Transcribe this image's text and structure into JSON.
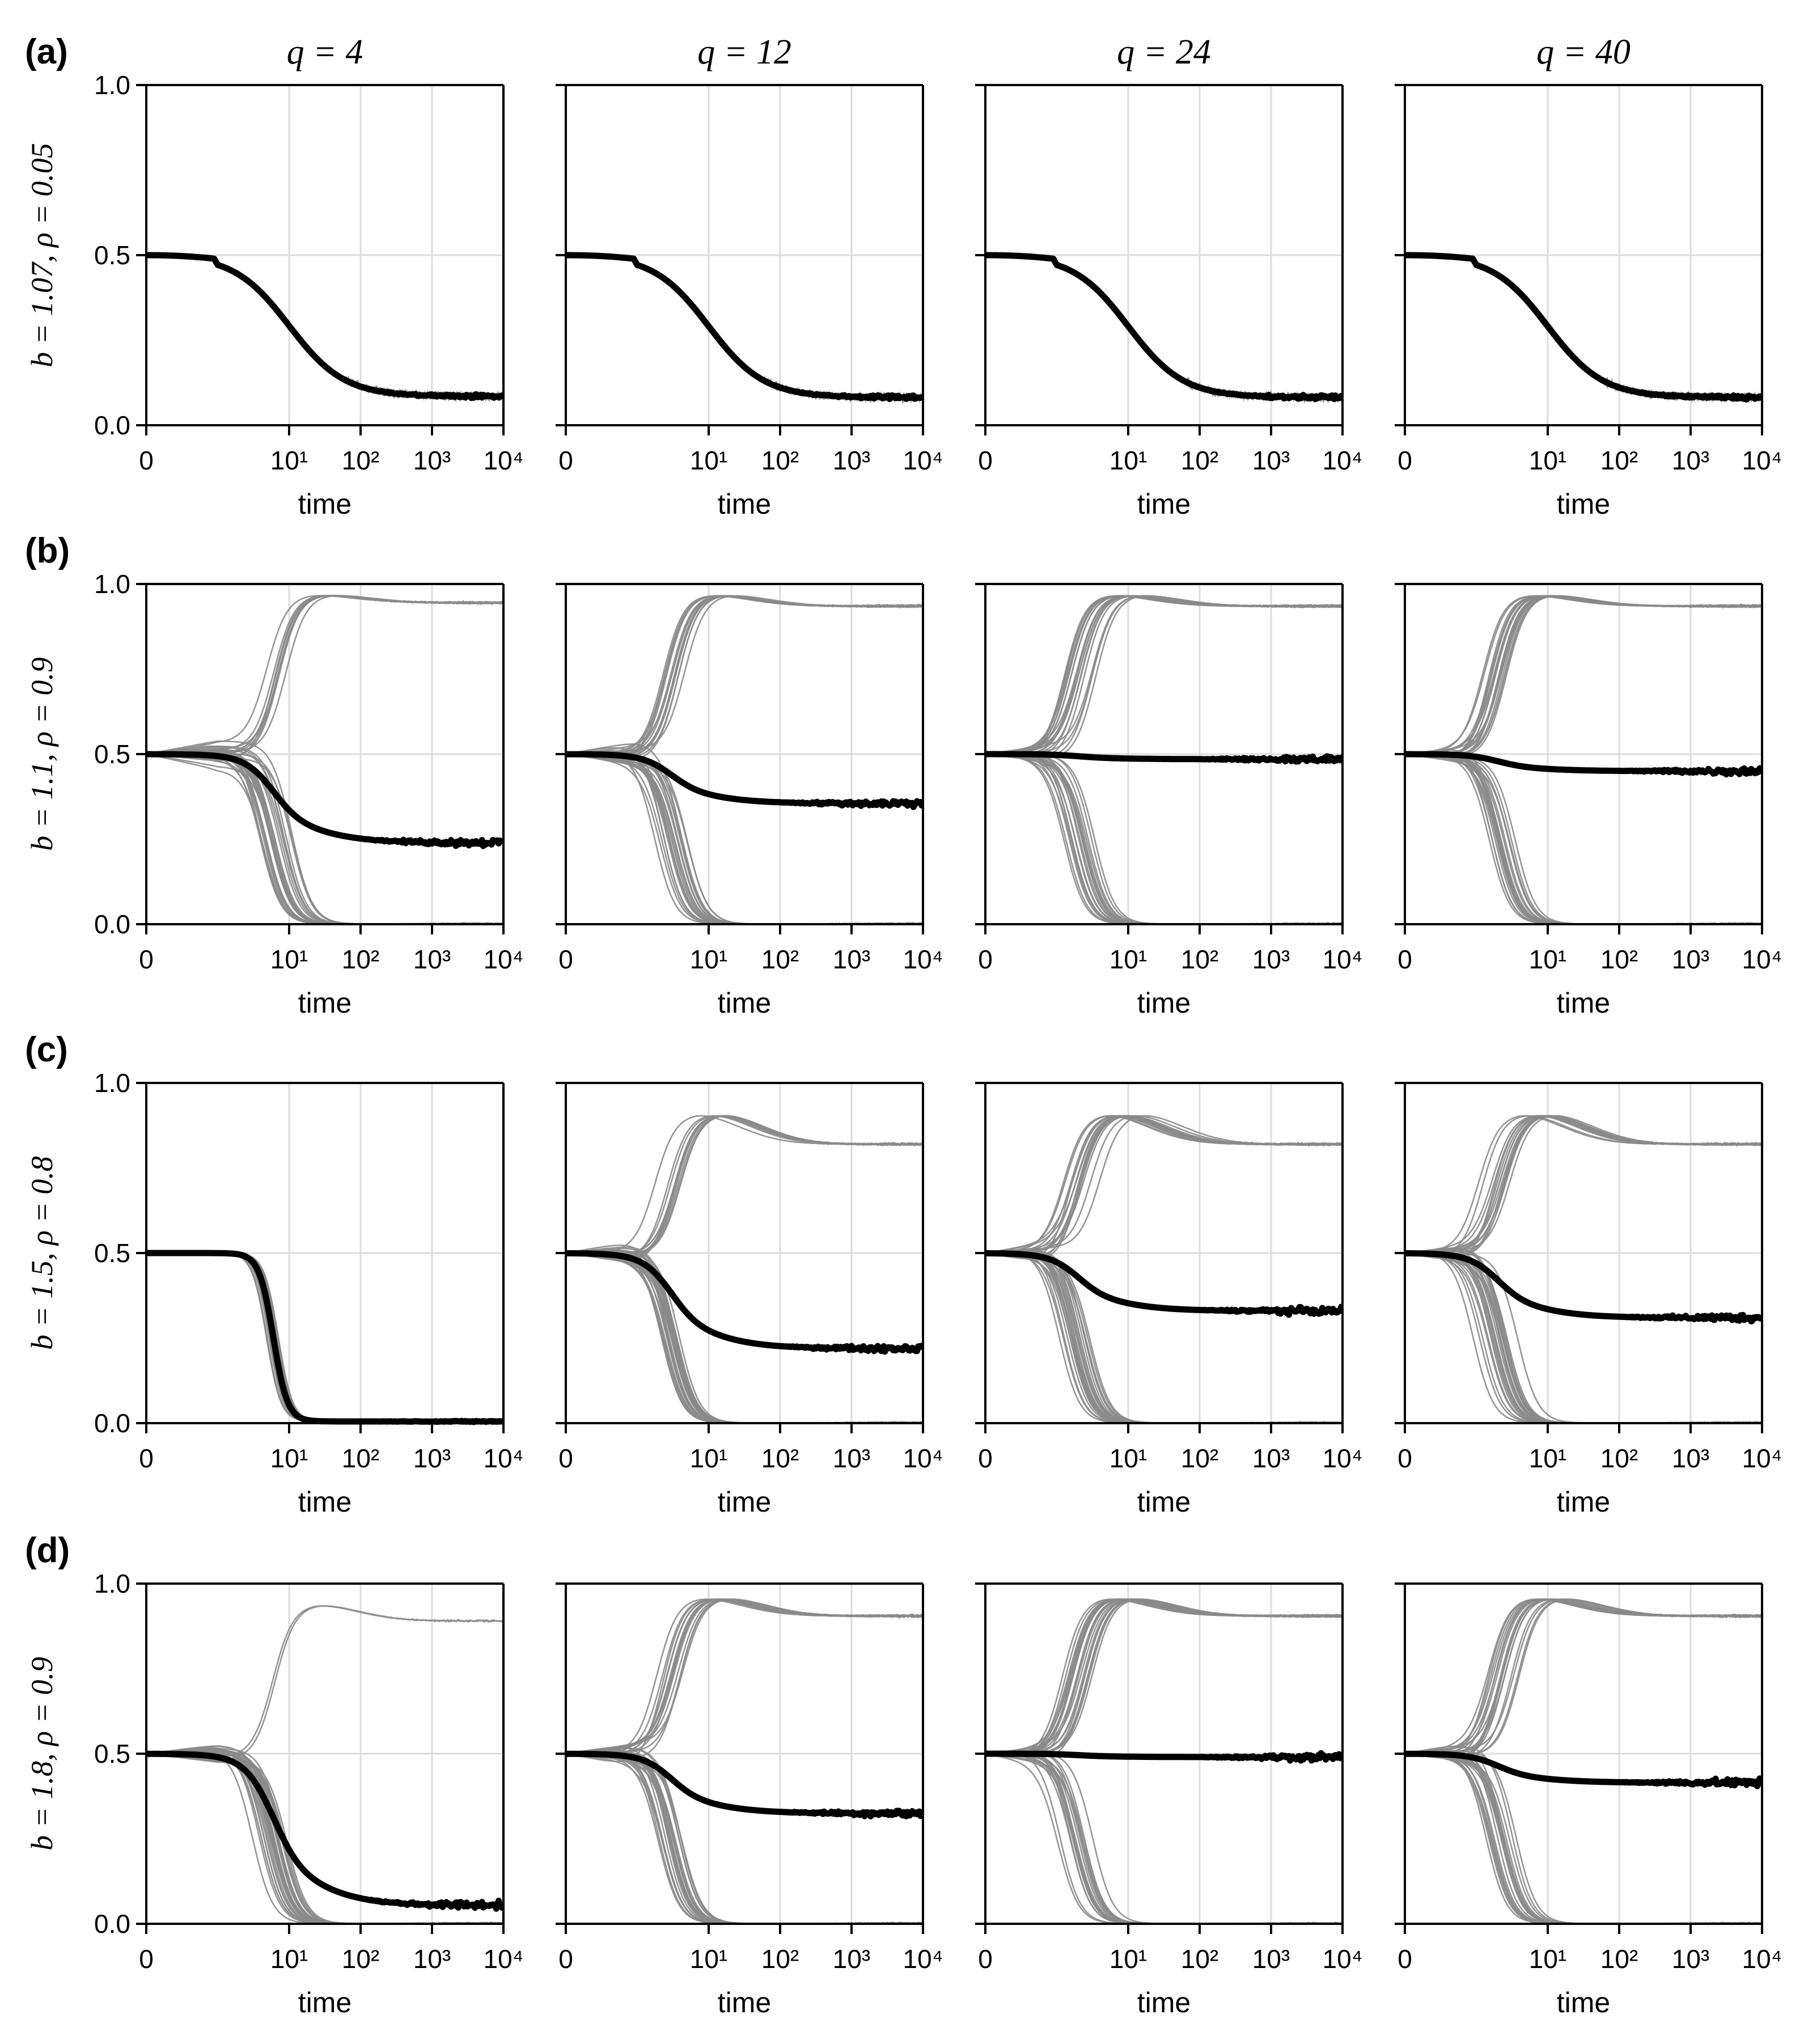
{
  "columns": [
    {
      "label": "q = 4"
    },
    {
      "label": "q = 12"
    },
    {
      "label": "q = 24"
    },
    {
      "label": "q = 40"
    }
  ],
  "rows": [
    {
      "panel_label": "(a)",
      "ylabel": "b = 1.07, ρ = 0.05"
    },
    {
      "panel_label": "(b)",
      "ylabel": "b = 1.1, ρ = 0.9"
    },
    {
      "panel_label": "(c)",
      "ylabel": "b = 1.5, ρ = 0.8"
    },
    {
      "panel_label": "(d)",
      "ylabel": "b = 1.8, ρ = 0.9"
    }
  ],
  "colors": {
    "realization": "#8a8a8a",
    "mean": "#000000",
    "grid": "#dcdcdc"
  },
  "chart_data": {
    "type": "line",
    "layout": "4x4 grid of line plots",
    "xlabel": "time",
    "xscale": "symlog",
    "xlim": [
      0,
      10000
    ],
    "xticks": [
      0,
      10,
      100,
      1000,
      10000
    ],
    "xticklabels": [
      "0",
      "10¹",
      "10²",
      "10³",
      "10⁴"
    ],
    "yticks": [
      0,
      0.5,
      1
    ],
    "yticklabels": [
      "0.0",
      "0.5",
      "1.0"
    ],
    "ylim": [
      0,
      1
    ],
    "grid": true,
    "series_legend": [
      "individual realizations (thin grey lines)",
      "mean (thick black line)"
    ],
    "panels": [
      [
        {
          "mode": "decay",
          "start": 0.5,
          "end": 0.085,
          "tmid": 10,
          "width": 1.45,
          "noise": 0.02
        },
        {
          "mode": "decay",
          "start": 0.5,
          "end": 0.082,
          "tmid": 10,
          "width": 1.45,
          "noise": 0.02
        },
        {
          "mode": "decay",
          "start": 0.5,
          "end": 0.082,
          "tmid": 10,
          "width": 1.45,
          "noise": 0.02
        },
        {
          "mode": "decay",
          "start": 0.5,
          "end": 0.082,
          "tmid": 10,
          "width": 1.45,
          "noise": 0.02
        }
      ],
      [
        {
          "mode": "split",
          "up_peak": 0.97,
          "up_plateau": 0.945,
          "frac_up": 0.24,
          "mean_plateau": 0.24,
          "t_split": 6,
          "spread": 0.3
        },
        {
          "mode": "split",
          "up_peak": 0.97,
          "up_plateau": 0.935,
          "frac_up": 0.37,
          "mean_plateau": 0.355,
          "t_split": 3,
          "spread": 0.25
        },
        {
          "mode": "split",
          "up_peak": 0.97,
          "up_plateau": 0.935,
          "frac_up": 0.52,
          "mean_plateau": 0.485,
          "t_split": 2,
          "spread": 0.3
        },
        {
          "mode": "split",
          "up_peak": 0.97,
          "up_plateau": 0.935,
          "frac_up": 0.48,
          "mean_plateau": 0.45,
          "t_split": 2,
          "spread": 0.3
        }
      ],
      [
        {
          "mode": "collapse",
          "start": 0.5,
          "end": 0.005,
          "t_split": 6,
          "spread": 0.2
        },
        {
          "mode": "split",
          "up_peak": 0.91,
          "up_plateau": 0.82,
          "frac_up": 0.27,
          "mean_plateau": 0.22,
          "t_split": 3,
          "spread": 0.25
        },
        {
          "mode": "split",
          "up_peak": 0.91,
          "up_plateau": 0.82,
          "frac_up": 0.4,
          "mean_plateau": 0.33,
          "t_split": 2,
          "spread": 0.3
        },
        {
          "mode": "split",
          "up_peak": 0.91,
          "up_plateau": 0.82,
          "frac_up": 0.38,
          "mean_plateau": 0.31,
          "t_split": 2,
          "spread": 0.3
        }
      ],
      [
        {
          "mode": "split",
          "up_peak": 0.94,
          "up_plateau": 0.89,
          "frac_up": 0.06,
          "mean_plateau": 0.055,
          "t_split": 6,
          "spread": 0.3
        },
        {
          "mode": "split",
          "up_peak": 0.96,
          "up_plateau": 0.905,
          "frac_up": 0.36,
          "mean_plateau": 0.325,
          "t_split": 3,
          "spread": 0.25
        },
        {
          "mode": "split",
          "up_peak": 0.96,
          "up_plateau": 0.905,
          "frac_up": 0.54,
          "mean_plateau": 0.49,
          "t_split": 2,
          "spread": 0.3
        },
        {
          "mode": "split",
          "up_peak": 0.96,
          "up_plateau": 0.905,
          "frac_up": 0.46,
          "mean_plateau": 0.415,
          "t_split": 2,
          "spread": 0.3
        }
      ]
    ]
  }
}
